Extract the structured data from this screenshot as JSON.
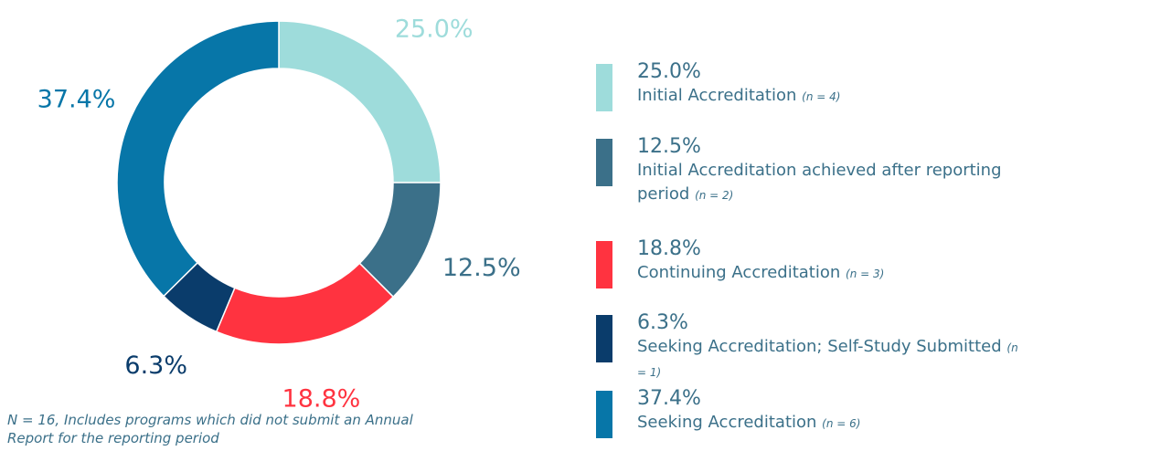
{
  "chart_data": {
    "type": "donut",
    "categories": [
      "Initial Accreditation",
      "Initial Accreditation achieved after reporting period",
      "Continuing Accreditation",
      "Seeking Accreditation; Self-Study Submitted",
      "Seeking Accreditation"
    ],
    "count_labels": [
      "(n = 4)",
      "(n = 2)",
      "(n = 3)",
      "(n = 1)",
      "(n = 6)"
    ],
    "values": [
      25.0,
      12.5,
      18.8,
      6.3,
      37.4
    ],
    "value_labels": [
      "25.0%",
      "12.5%",
      "18.8%",
      "6.3%",
      "37.4%"
    ],
    "colors": [
      "#9edcdb",
      "#3b7089",
      "#ff3340",
      "#0a3c6b",
      "#0776a8"
    ],
    "note": "N = 16, Includes programs which did not submit an Annual Report for the reporting period"
  }
}
